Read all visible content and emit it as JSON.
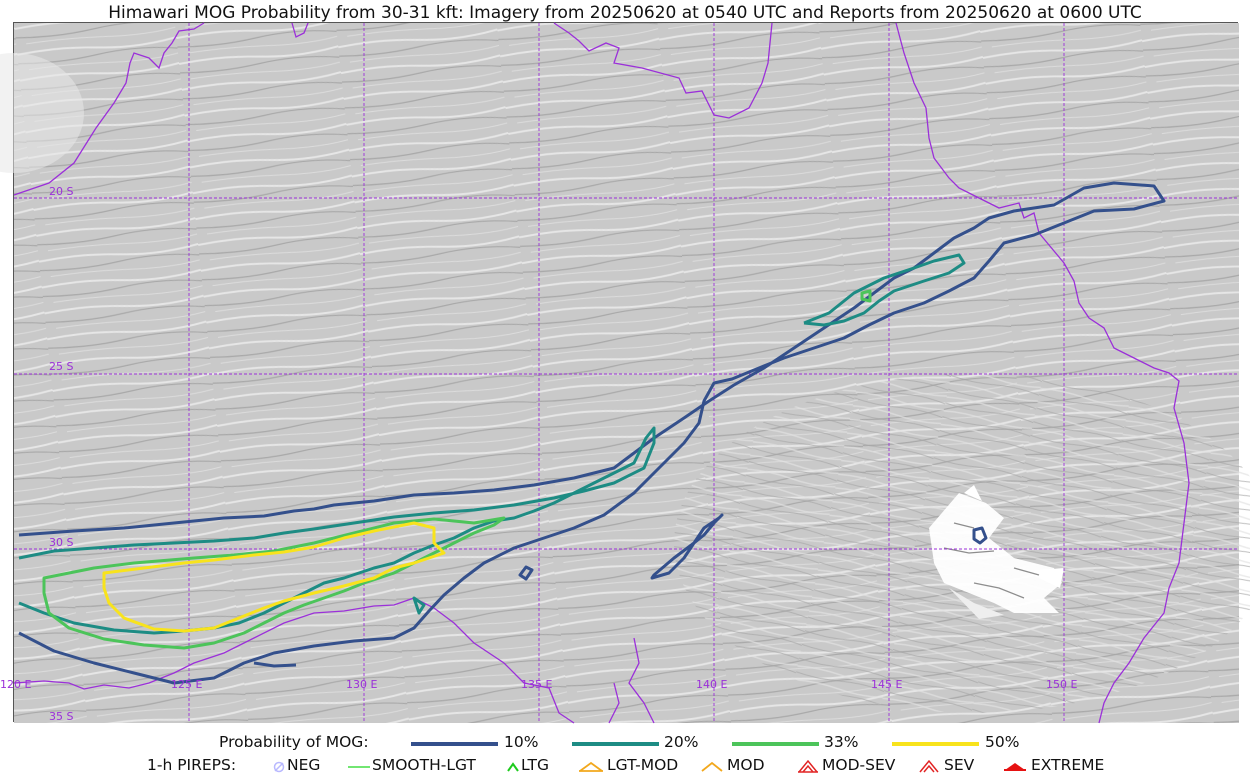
{
  "title": "Himawari MOG Probability from 30-31 kft: Imagery from 20250620 at 0540 UTC and Reports from 20250620 at 0600 UTC",
  "map": {
    "lat_labels": [
      "20 S",
      "25 S",
      "30 S",
      "35 S"
    ],
    "lon_labels": [
      "120 E",
      "125 E",
      "130 E",
      "135 E",
      "140 E",
      "145 E",
      "150 E"
    ],
    "grid_color": "#9b30d9",
    "coast_color": "#9b30d9"
  },
  "legend": {
    "probability": {
      "label": "Probability of MOG:",
      "items": [
        {
          "label": "10%",
          "color": "#34508c"
        },
        {
          "label": "20%",
          "color": "#1d8c84"
        },
        {
          "label": "33%",
          "color": "#4cc45a"
        },
        {
          "label": "50%",
          "color": "#f8e31c"
        }
      ]
    },
    "pireps": {
      "label": "1-h PIREPS:",
      "items": [
        {
          "label": "NEG",
          "icon": "neg-icon",
          "color": "#b9b9ff"
        },
        {
          "label": "SMOOTH-LGT",
          "icon": "smooth-lgt-icon",
          "color": "#44dd44"
        },
        {
          "label": "LTG",
          "icon": "ltg-icon",
          "color": "#1ecb1e"
        },
        {
          "label": "LGT-MOD",
          "icon": "lgt-mod-icon",
          "color": "#f2a81d"
        },
        {
          "label": "MOD",
          "icon": "mod-icon",
          "color": "#f2a81d"
        },
        {
          "label": "MOD-SEV",
          "icon": "mod-sev-icon",
          "color": "#e22424"
        },
        {
          "label": "SEV",
          "icon": "sev-icon",
          "color": "#e22424"
        },
        {
          "label": "EXTREME",
          "icon": "extreme-icon",
          "color": "#e61212"
        }
      ]
    }
  }
}
